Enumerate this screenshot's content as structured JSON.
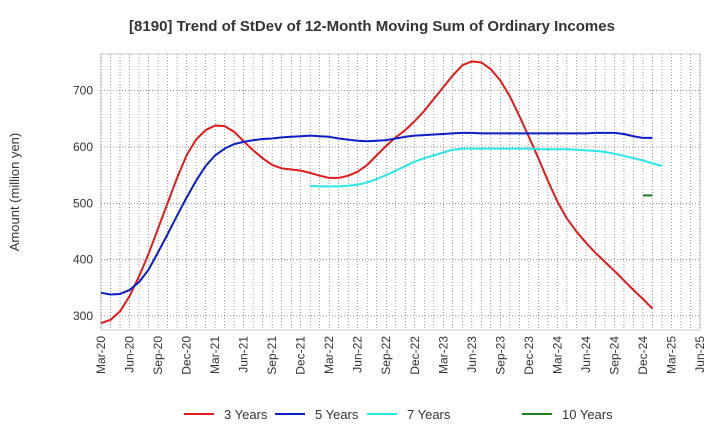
{
  "chart_data": {
    "type": "line",
    "title": "[8190]  Trend of StDev of 12-Month Moving Sum of Ordinary Incomes",
    "xlabel": "",
    "ylabel": "Amount (million yen)",
    "ylim": [
      275,
      765
    ],
    "yticks": [
      300,
      400,
      500,
      600,
      700
    ],
    "ytick_labels": [
      "300",
      "400",
      "500",
      "600",
      "700"
    ],
    "x_range": [
      0,
      63
    ],
    "xtick_labels": [
      "Mar-20",
      "Jun-20",
      "Sep-20",
      "Dec-20",
      "Mar-21",
      "Jun-21",
      "Sep-21",
      "Dec-21",
      "Mar-22",
      "Jun-22",
      "Sep-22",
      "Dec-22",
      "Mar-23",
      "Jun-23",
      "Sep-23",
      "Dec-23",
      "Mar-24",
      "Jun-24",
      "Sep-24",
      "Dec-24",
      "Mar-25",
      "Jun-25"
    ],
    "grid": true,
    "legend_position": "bottom",
    "series": [
      {
        "name": "3 Years",
        "color": "#e31a1c",
        "start": 0,
        "values": [
          287,
          293,
          308,
          335,
          370,
          410,
          455,
          500,
          545,
          585,
          613,
          630,
          638,
          637,
          627,
          610,
          594,
          580,
          568,
          562,
          560,
          558,
          554,
          549,
          545,
          545,
          549,
          556,
          568,
          585,
          602,
          617,
          630,
          646,
          664,
          685,
          706,
          727,
          745,
          752,
          750,
          738,
          718,
          690,
          655,
          618,
          580,
          540,
          503,
          473,
          450,
          430,
          412,
          396,
          380,
          363,
          346,
          330,
          313
        ]
      },
      {
        "name": "5 Years",
        "color": "#0a1ec8",
        "start": 0,
        "values": [
          341,
          338,
          339,
          346,
          360,
          382,
          413,
          445,
          478,
          510,
          540,
          566,
          585,
          597,
          605,
          609,
          612,
          614,
          615,
          617,
          618,
          619,
          620,
          619,
          618,
          615,
          613,
          611,
          610,
          611,
          612,
          615,
          618,
          620,
          621,
          622,
          623,
          624,
          625,
          625,
          624,
          624,
          624,
          624,
          624,
          624,
          624,
          624,
          624,
          624,
          624,
          624,
          625,
          625,
          625,
          623,
          619,
          616,
          616
        ]
      },
      {
        "name": "7 Years",
        "color": "#29e8e8",
        "start": 22,
        "values": [
          531,
          530,
          530,
          530,
          531,
          533,
          537,
          543,
          550,
          558,
          566,
          574,
          580,
          585,
          590,
          595,
          597,
          597,
          597,
          597,
          597,
          597,
          597,
          597,
          596,
          596,
          596,
          596,
          595,
          594,
          593,
          591,
          588,
          584,
          580,
          576,
          571,
          566
        ]
      },
      {
        "name": "10 Years",
        "color": "#1e7d1e",
        "start": 57,
        "values": [
          514,
          514
        ]
      }
    ]
  }
}
